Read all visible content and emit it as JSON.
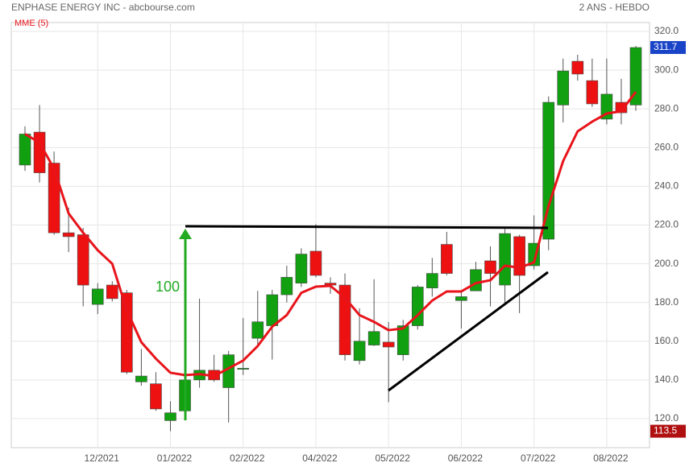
{
  "chart_data": {
    "type": "candlestick",
    "title": "ENPHASE ENERGY INC - abcbourse.com",
    "period": "2 ANS - HEBDO",
    "categories": [
      null,
      null,
      null,
      null,
      null,
      "12/2021",
      null,
      null,
      null,
      null,
      "01/2022",
      null,
      null,
      null,
      null,
      "02/2022",
      null,
      null,
      null,
      null,
      "04/2022",
      null,
      null,
      null,
      null,
      "05/2022",
      null,
      null,
      null,
      null,
      "06/2022",
      null,
      null,
      null,
      null,
      "07/2022",
      null,
      null,
      null,
      null,
      "08/2022",
      null,
      null
    ],
    "open": [
      251,
      268,
      252,
      216,
      215,
      179,
      189,
      185,
      139,
      138,
      119,
      124,
      140,
      145,
      136,
      145.5,
      161.5,
      168,
      184,
      190,
      206.5,
      190,
      189,
      150,
      158,
      159.5,
      153,
      168,
      187.5,
      210,
      181,
      186,
      201.5,
      189,
      214,
      199,
      212.7,
      282,
      304.6,
      294.6,
      274.7,
      283.4,
      282
    ],
    "high": [
      271,
      282,
      258,
      229,
      218.5,
      190,
      191,
      186.5,
      156,
      144,
      129,
      145,
      182,
      153,
      155,
      172,
      186,
      186.5,
      199,
      208,
      220.5,
      193,
      195,
      177,
      192,
      170,
      171,
      189,
      203,
      216.5,
      186,
      201,
      209,
      218,
      215,
      225,
      286.5,
      306,
      308,
      306,
      306,
      295.5,
      312.5
    ],
    "low": [
      248,
      242,
      215,
      206,
      178,
      174,
      180.5,
      143,
      137,
      124,
      113.5,
      123,
      136,
      139,
      118,
      142.5,
      158,
      150.5,
      180,
      188,
      193,
      184.5,
      150,
      148,
      157.5,
      128.5,
      150,
      166,
      183,
      194,
      166.5,
      186,
      178,
      179,
      174.5,
      197,
      207,
      273,
      294.6,
      281,
      272,
      272,
      279
    ],
    "close": [
      267,
      247,
      216,
      214,
      189,
      187,
      182,
      144,
      142,
      125,
      123,
      140,
      145,
      140,
      153,
      146,
      170,
      184,
      193,
      205,
      194,
      189,
      153,
      160,
      165,
      157,
      168,
      188,
      195,
      195,
      183,
      197,
      195,
      215.6,
      194,
      210.6,
      283.4,
      299.6,
      298,
      282.6,
      287.6,
      278,
      311.7
    ],
    "up_color": "#10a010",
    "down_color": "#ee1111",
    "overlay": {
      "name": "MME (5)",
      "color": "#e8141b",
      "values": [
        267,
        262.6,
        249,
        226,
        216,
        207,
        200,
        176,
        159.5,
        151,
        143.7,
        142.5,
        143,
        142,
        146,
        150,
        157.5,
        167.5,
        173.5,
        185,
        188.2,
        188.6,
        182.4,
        173.5,
        170,
        165.7,
        166.6,
        173.5,
        181,
        185.7,
        185.7,
        190,
        191.5,
        199,
        198,
        200.7,
        229.8,
        253,
        268.4,
        273.4,
        277.6,
        278.8,
        288.8
      ]
    },
    "annotations": [
      {
        "text": "100",
        "color": "#22aa22"
      }
    ],
    "price_tags": [
      {
        "value": 311.7,
        "color": "#1a44c8"
      },
      {
        "value": 113.5,
        "color": "#b01010"
      }
    ],
    "ylim": [
      105,
      324.6
    ],
    "yticks": [
      {
        "value": 120,
        "label": "120.0"
      },
      {
        "value": 140,
        "label": "140.0"
      },
      {
        "value": 160,
        "label": "160.0"
      },
      {
        "value": 180,
        "label": "180.0"
      },
      {
        "value": 200,
        "label": "200.0"
      },
      {
        "value": 220,
        "label": "220.0"
      },
      {
        "value": 240,
        "label": "240.0"
      },
      {
        "value": 260,
        "label": "260.0"
      },
      {
        "value": 280,
        "label": "280.0"
      },
      {
        "value": 300,
        "label": "300.0"
      },
      {
        "value": 320,
        "label": "320.0"
      }
    ],
    "grid": true
  }
}
